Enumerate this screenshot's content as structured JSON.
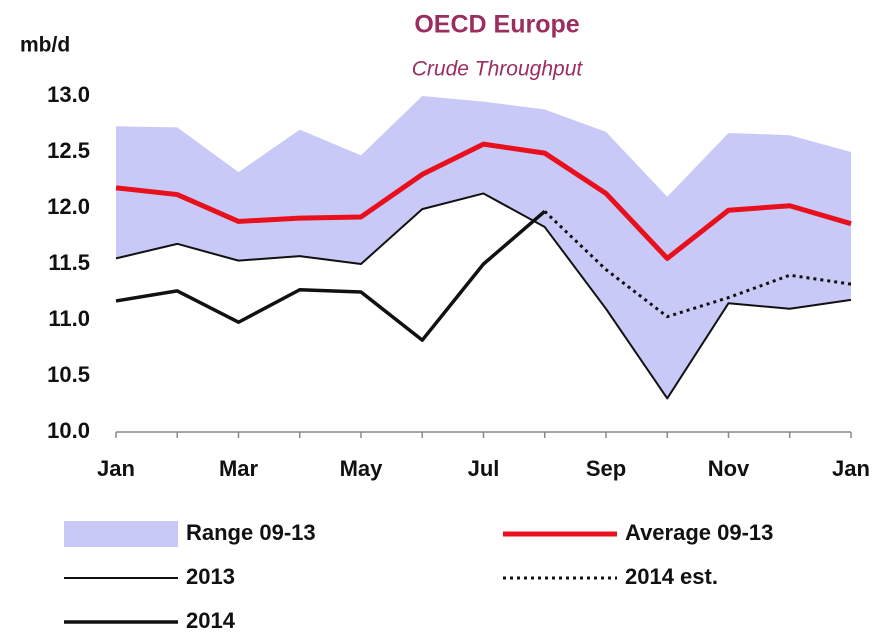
{
  "chart_data": {
    "type": "line",
    "title": "OECD Europe",
    "subtitle": "Crude Throughput",
    "y_label": "mb/d",
    "categories": [
      "Jan",
      null,
      "Mar",
      null,
      "May",
      null,
      "Jul",
      null,
      "Sep",
      null,
      "Nov",
      null,
      "Jan"
    ],
    "ylim": [
      10,
      13
    ],
    "yticks": [
      {
        "value": 10,
        "label": "10.0"
      },
      10.5,
      {
        "value": 11,
        "label": "11.0"
      },
      11.5,
      {
        "value": 12,
        "label": "12.0"
      },
      12.5,
      {
        "value": 13,
        "label": "13.0"
      }
    ],
    "grid": false,
    "series": [
      {
        "name": "Range 09-13",
        "style": "range",
        "color": "#c9c9f7",
        "high": [
          12.73,
          12.72,
          12.32,
          12.7,
          12.47,
          13.0,
          12.95,
          12.88,
          12.68,
          12.1,
          12.67,
          12.65,
          12.5
        ],
        "low": [
          11.55,
          11.68,
          11.53,
          11.57,
          11.5,
          11.99,
          12.13,
          11.83,
          11.1,
          10.3,
          11.15,
          11.1,
          11.18
        ]
      },
      {
        "name": "Average 09-13",
        "style": "thick",
        "color": "#e8101c",
        "values": [
          12.18,
          12.12,
          11.88,
          11.91,
          11.92,
          12.3,
          12.57,
          12.49,
          12.13,
          11.55,
          11.98,
          12.02,
          11.86
        ]
      },
      {
        "name": "2013",
        "style": "thin",
        "color": "#111111",
        "values": [
          11.55,
          11.68,
          11.53,
          11.57,
          11.5,
          11.99,
          12.13,
          11.83,
          11.1,
          10.3,
          11.15,
          11.1,
          11.18
        ]
      },
      {
        "name": "2014 est.",
        "style": "dotted",
        "color": "#111111",
        "values": [
          null,
          null,
          null,
          null,
          null,
          null,
          null,
          11.97,
          11.45,
          11.03,
          11.2,
          11.4,
          11.32
        ]
      },
      {
        "name": "2014",
        "style": "medium",
        "color": "#111111",
        "values": [
          11.17,
          11.26,
          10.98,
          11.27,
          11.25,
          10.82,
          11.5,
          11.97,
          null,
          null,
          null,
          null,
          null
        ]
      }
    ]
  }
}
